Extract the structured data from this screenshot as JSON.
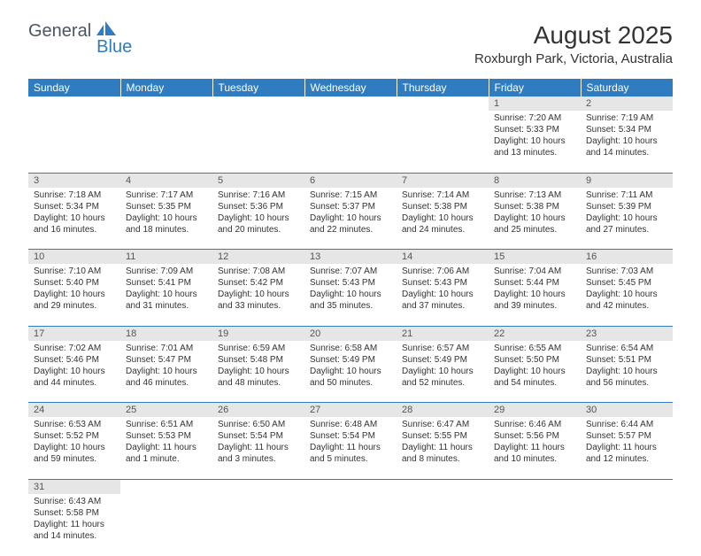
{
  "brand": {
    "part1": "General",
    "part2": "Blue"
  },
  "title": "August 2025",
  "location": "Roxburgh Park, Victoria, Australia",
  "colors": {
    "header_bg": "#2f7dc0",
    "header_fg": "#ffffff",
    "daynum_bg": "#e6e6e6",
    "border": "#2f7dc0",
    "text": "#333333"
  },
  "weekdays": [
    "Sunday",
    "Monday",
    "Tuesday",
    "Wednesday",
    "Thursday",
    "Friday",
    "Saturday"
  ],
  "weeks": [
    [
      null,
      null,
      null,
      null,
      null,
      {
        "d": "1",
        "sr": "7:20 AM",
        "ss": "5:33 PM",
        "dl": "10 hours and 13 minutes."
      },
      {
        "d": "2",
        "sr": "7:19 AM",
        "ss": "5:34 PM",
        "dl": "10 hours and 14 minutes."
      }
    ],
    [
      {
        "d": "3",
        "sr": "7:18 AM",
        "ss": "5:34 PM",
        "dl": "10 hours and 16 minutes."
      },
      {
        "d": "4",
        "sr": "7:17 AM",
        "ss": "5:35 PM",
        "dl": "10 hours and 18 minutes."
      },
      {
        "d": "5",
        "sr": "7:16 AM",
        "ss": "5:36 PM",
        "dl": "10 hours and 20 minutes."
      },
      {
        "d": "6",
        "sr": "7:15 AM",
        "ss": "5:37 PM",
        "dl": "10 hours and 22 minutes."
      },
      {
        "d": "7",
        "sr": "7:14 AM",
        "ss": "5:38 PM",
        "dl": "10 hours and 24 minutes."
      },
      {
        "d": "8",
        "sr": "7:13 AM",
        "ss": "5:38 PM",
        "dl": "10 hours and 25 minutes."
      },
      {
        "d": "9",
        "sr": "7:11 AM",
        "ss": "5:39 PM",
        "dl": "10 hours and 27 minutes."
      }
    ],
    [
      {
        "d": "10",
        "sr": "7:10 AM",
        "ss": "5:40 PM",
        "dl": "10 hours and 29 minutes."
      },
      {
        "d": "11",
        "sr": "7:09 AM",
        "ss": "5:41 PM",
        "dl": "10 hours and 31 minutes."
      },
      {
        "d": "12",
        "sr": "7:08 AM",
        "ss": "5:42 PM",
        "dl": "10 hours and 33 minutes."
      },
      {
        "d": "13",
        "sr": "7:07 AM",
        "ss": "5:43 PM",
        "dl": "10 hours and 35 minutes."
      },
      {
        "d": "14",
        "sr": "7:06 AM",
        "ss": "5:43 PM",
        "dl": "10 hours and 37 minutes."
      },
      {
        "d": "15",
        "sr": "7:04 AM",
        "ss": "5:44 PM",
        "dl": "10 hours and 39 minutes."
      },
      {
        "d": "16",
        "sr": "7:03 AM",
        "ss": "5:45 PM",
        "dl": "10 hours and 42 minutes."
      }
    ],
    [
      {
        "d": "17",
        "sr": "7:02 AM",
        "ss": "5:46 PM",
        "dl": "10 hours and 44 minutes."
      },
      {
        "d": "18",
        "sr": "7:01 AM",
        "ss": "5:47 PM",
        "dl": "10 hours and 46 minutes."
      },
      {
        "d": "19",
        "sr": "6:59 AM",
        "ss": "5:48 PM",
        "dl": "10 hours and 48 minutes."
      },
      {
        "d": "20",
        "sr": "6:58 AM",
        "ss": "5:49 PM",
        "dl": "10 hours and 50 minutes."
      },
      {
        "d": "21",
        "sr": "6:57 AM",
        "ss": "5:49 PM",
        "dl": "10 hours and 52 minutes."
      },
      {
        "d": "22",
        "sr": "6:55 AM",
        "ss": "5:50 PM",
        "dl": "10 hours and 54 minutes."
      },
      {
        "d": "23",
        "sr": "6:54 AM",
        "ss": "5:51 PM",
        "dl": "10 hours and 56 minutes."
      }
    ],
    [
      {
        "d": "24",
        "sr": "6:53 AM",
        "ss": "5:52 PM",
        "dl": "10 hours and 59 minutes."
      },
      {
        "d": "25",
        "sr": "6:51 AM",
        "ss": "5:53 PM",
        "dl": "11 hours and 1 minute."
      },
      {
        "d": "26",
        "sr": "6:50 AM",
        "ss": "5:54 PM",
        "dl": "11 hours and 3 minutes."
      },
      {
        "d": "27",
        "sr": "6:48 AM",
        "ss": "5:54 PM",
        "dl": "11 hours and 5 minutes."
      },
      {
        "d": "28",
        "sr": "6:47 AM",
        "ss": "5:55 PM",
        "dl": "11 hours and 8 minutes."
      },
      {
        "d": "29",
        "sr": "6:46 AM",
        "ss": "5:56 PM",
        "dl": "11 hours and 10 minutes."
      },
      {
        "d": "30",
        "sr": "6:44 AM",
        "ss": "5:57 PM",
        "dl": "11 hours and 12 minutes."
      }
    ],
    [
      {
        "d": "31",
        "sr": "6:43 AM",
        "ss": "5:58 PM",
        "dl": "11 hours and 14 minutes."
      },
      null,
      null,
      null,
      null,
      null,
      null
    ]
  ],
  "labels": {
    "sunrise": "Sunrise:",
    "sunset": "Sunset:",
    "daylight": "Daylight:"
  }
}
